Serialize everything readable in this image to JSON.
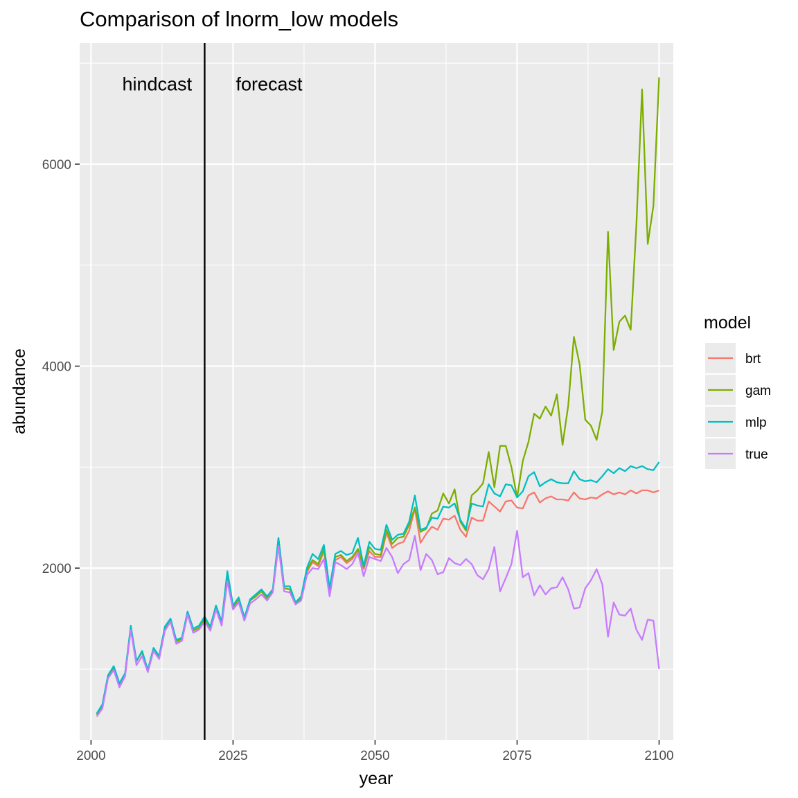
{
  "chart_data": {
    "type": "line",
    "title": "Comparison of lnorm_low models",
    "xlabel": "year",
    "ylabel": "abundance",
    "xlim": [
      1998,
      2102.5
    ],
    "ylim": [
      300,
      7200
    ],
    "x_ticks": [
      2000,
      2025,
      2050,
      2075,
      2100
    ],
    "x_tick_labels": [
      "2000",
      "2025",
      "2050",
      "2075",
      "2100"
    ],
    "y_ticks": [
      2000,
      4000,
      6000
    ],
    "y_tick_labels": [
      "2000",
      "4000",
      "6000"
    ],
    "grid": true,
    "legend_title": "model",
    "legend_position": "right",
    "vline": {
      "x": 2020
    },
    "annotations": [
      {
        "text": "hindcast",
        "x": 2005.5,
        "y": 6800
      },
      {
        "text": "forecast",
        "x": 2025.5,
        "y": 6800
      }
    ],
    "x": [
      2001,
      2002,
      2003,
      2004,
      2005,
      2006,
      2007,
      2008,
      2009,
      2010,
      2011,
      2012,
      2013,
      2014,
      2015,
      2016,
      2017,
      2018,
      2019,
      2020,
      2021,
      2022,
      2023,
      2024,
      2025,
      2026,
      2027,
      2028,
      2029,
      2030,
      2031,
      2032,
      2033,
      2034,
      2035,
      2036,
      2037,
      2038,
      2039,
      2040,
      2041,
      2042,
      2043,
      2044,
      2045,
      2046,
      2047,
      2048,
      2049,
      2050,
      2051,
      2052,
      2053,
      2054,
      2055,
      2056,
      2057,
      2058,
      2059,
      2060,
      2061,
      2062,
      2063,
      2064,
      2065,
      2066,
      2067,
      2068,
      2069,
      2070,
      2071,
      2072,
      2073,
      2074,
      2075,
      2076,
      2077,
      2078,
      2079,
      2080,
      2081,
      2082,
      2083,
      2084,
      2085,
      2086,
      2087,
      2088,
      2089,
      2090,
      2091,
      2092,
      2093,
      2094,
      2095,
      2096,
      2097,
      2098,
      2099,
      2100
    ],
    "series": [
      {
        "name": "brt",
        "color": "#F8766D",
        "values": [
          550,
          640,
          930,
          1010,
          840,
          950,
          1410,
          1080,
          1170,
          990,
          1200,
          1120,
          1400,
          1490,
          1270,
          1300,
          1560,
          1380,
          1410,
          1500,
          1400,
          1610,
          1450,
          1930,
          1610,
          1690,
          1500,
          1680,
          1720,
          1770,
          1700,
          1780,
          2290,
          1800,
          1790,
          1650,
          1700,
          1960,
          2060,
          2020,
          2170,
          1780,
          2080,
          2110,
          2050,
          2090,
          2180,
          1990,
          2170,
          2110,
          2110,
          2350,
          2200,
          2240,
          2260,
          2370,
          2590,
          2250,
          2340,
          2410,
          2380,
          2490,
          2480,
          2520,
          2380,
          2310,
          2500,
          2470,
          2470,
          2660,
          2610,
          2560,
          2660,
          2670,
          2600,
          2590,
          2720,
          2750,
          2650,
          2690,
          2710,
          2680,
          2680,
          2670,
          2750,
          2690,
          2680,
          2700,
          2690,
          2730,
          2760,
          2730,
          2750,
          2730,
          2770,
          2740,
          2770,
          2770,
          2750,
          2770
        ]
      },
      {
        "name": "gam",
        "color": "#7CAE00",
        "values": [
          550,
          640,
          930,
          1010,
          840,
          950,
          1410,
          1080,
          1170,
          990,
          1200,
          1120,
          1400,
          1490,
          1270,
          1300,
          1560,
          1380,
          1410,
          1500,
          1400,
          1610,
          1450,
          1930,
          1610,
          1690,
          1500,
          1680,
          1720,
          1770,
          1700,
          1780,
          2290,
          1800,
          1790,
          1650,
          1700,
          1980,
          2080,
          2040,
          2190,
          1790,
          2110,
          2130,
          2070,
          2110,
          2190,
          2010,
          2210,
          2140,
          2130,
          2380,
          2240,
          2300,
          2310,
          2430,
          2600,
          2360,
          2390,
          2540,
          2570,
          2740,
          2640,
          2780,
          2460,
          2370,
          2720,
          2770,
          2840,
          3150,
          2800,
          3210,
          3210,
          3000,
          2700,
          3060,
          3250,
          3530,
          3480,
          3600,
          3510,
          3720,
          3220,
          3610,
          4290,
          4020,
          3470,
          3410,
          3270,
          3550,
          5330,
          4160,
          4440,
          4500,
          4360,
          5400,
          6740,
          5210,
          5590,
          6860
        ]
      },
      {
        "name": "mlp",
        "color": "#00BFC4",
        "values": [
          560,
          650,
          940,
          1030,
          860,
          960,
          1430,
          1080,
          1180,
          990,
          1210,
          1130,
          1420,
          1500,
          1290,
          1310,
          1570,
          1400,
          1430,
          1520,
          1420,
          1630,
          1470,
          1970,
          1630,
          1710,
          1510,
          1690,
          1740,
          1790,
          1720,
          1790,
          2300,
          1820,
          1820,
          1660,
          1720,
          2000,
          2140,
          2090,
          2230,
          1800,
          2140,
          2170,
          2130,
          2150,
          2300,
          2020,
          2260,
          2190,
          2180,
          2430,
          2280,
          2330,
          2340,
          2460,
          2720,
          2380,
          2400,
          2500,
          2490,
          2610,
          2600,
          2640,
          2480,
          2390,
          2640,
          2620,
          2610,
          2830,
          2740,
          2710,
          2830,
          2820,
          2700,
          2760,
          2910,
          2950,
          2810,
          2850,
          2880,
          2850,
          2840,
          2840,
          2960,
          2880,
          2860,
          2870,
          2850,
          2910,
          2980,
          2940,
          2990,
          2960,
          3010,
          2990,
          3010,
          2980,
          2970,
          3050
        ]
      },
      {
        "name": "true",
        "color": "#C77CFF",
        "values": [
          530,
          610,
          910,
          990,
          820,
          930,
          1390,
          1040,
          1130,
          970,
          1180,
          1100,
          1380,
          1470,
          1250,
          1280,
          1540,
          1360,
          1390,
          1470,
          1380,
          1590,
          1430,
          1870,
          1590,
          1660,
          1480,
          1650,
          1690,
          1740,
          1680,
          1760,
          2220,
          1770,
          1760,
          1640,
          1680,
          1930,
          2000,
          1990,
          2090,
          1720,
          2060,
          2030,
          1990,
          2040,
          2150,
          1920,
          2110,
          2090,
          2070,
          2200,
          2110,
          1950,
          2040,
          2080,
          2320,
          1980,
          2140,
          2080,
          1940,
          1960,
          2100,
          2050,
          2030,
          2090,
          2040,
          1930,
          1890,
          1990,
          2210,
          1770,
          1900,
          2040,
          2370,
          1910,
          1950,
          1730,
          1830,
          1740,
          1800,
          1810,
          1910,
          1790,
          1600,
          1610,
          1800,
          1880,
          1990,
          1840,
          1320,
          1660,
          1540,
          1530,
          1600,
          1390,
          1290,
          1490,
          1480,
          1000
        ]
      }
    ]
  }
}
